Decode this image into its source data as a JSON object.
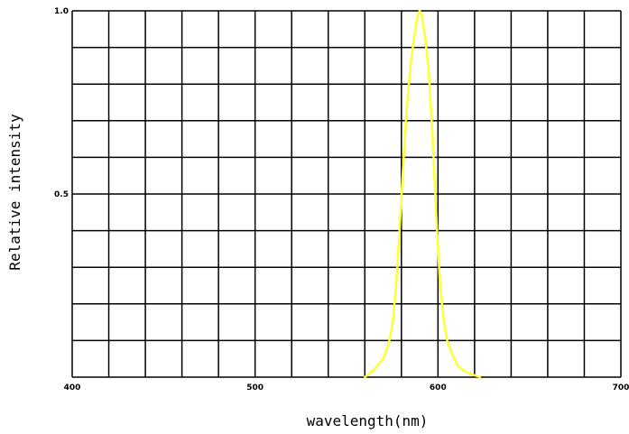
{
  "chart_data": {
    "type": "line",
    "title": "",
    "xlabel": "wavelength(nm)",
    "ylabel": "Relative intensity",
    "xlim": [
      400,
      700
    ],
    "ylim": [
      0,
      1.0
    ],
    "x_ticks": [
      400,
      500,
      600,
      700
    ],
    "x_tick_labels": [
      "400",
      "500",
      "600",
      "700"
    ],
    "y_ticks": [
      0.5,
      1.0
    ],
    "y_tick_labels": [
      "0.5",
      "1.0"
    ],
    "grid": true,
    "x_grid_step": 20,
    "y_grid_step": 0.1,
    "legend": "none",
    "series": [
      {
        "color": "#ffff33",
        "x": [
          560,
          565,
          570,
          573,
          575,
          577,
          579,
          581,
          583,
          585,
          587,
          589,
          590,
          591,
          593,
          595,
          597,
          599,
          601,
          603,
          605,
          608,
          611,
          615,
          620,
          623
        ],
        "y": [
          0.0,
          0.02,
          0.05,
          0.09,
          0.14,
          0.24,
          0.4,
          0.58,
          0.74,
          0.85,
          0.93,
          0.99,
          1.0,
          0.99,
          0.93,
          0.83,
          0.66,
          0.45,
          0.26,
          0.16,
          0.1,
          0.06,
          0.03,
          0.015,
          0.005,
          0.0
        ]
      }
    ]
  }
}
